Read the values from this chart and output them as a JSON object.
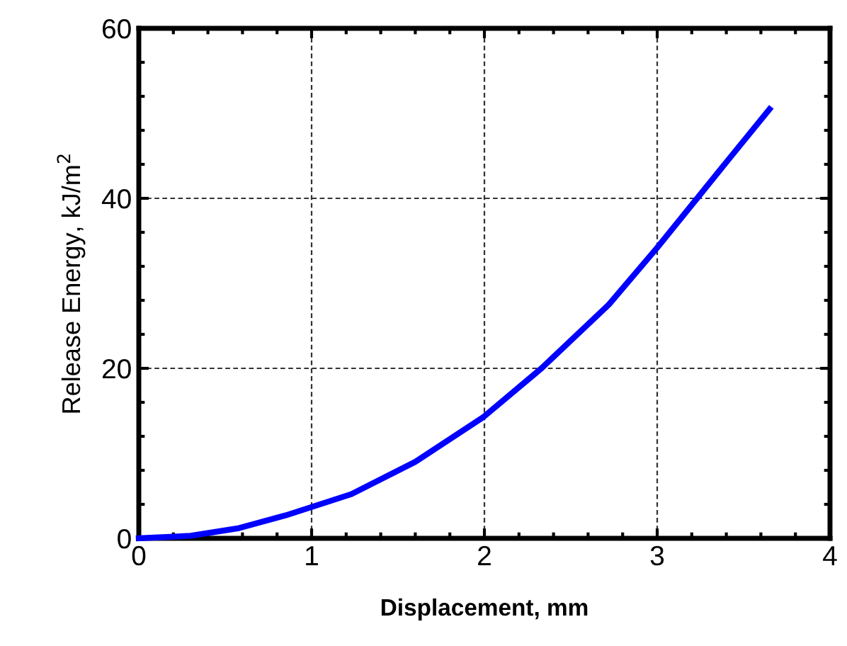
{
  "chart_data": {
    "type": "line",
    "xlabel": "Displacement, mm",
    "ylabel": "Release Energy, kJ/m$^{2}$",
    "series": [
      {
        "color": "#0000ff",
        "x": [
          0,
          0.3,
          0.58,
          0.85,
          1.23,
          1.6,
          1.99,
          2.33,
          2.72,
          3.0,
          3.43,
          3.65
        ],
        "values": [
          0,
          0.3,
          1.2,
          2.7,
          5.2,
          9,
          14.2,
          20,
          27.5,
          34.2,
          45,
          50.5
        ]
      }
    ],
    "xlim": [
      0,
      4
    ],
    "ylim": [
      0,
      60
    ],
    "xticks": [
      0,
      1,
      2,
      3,
      4
    ],
    "yticks": [
      0,
      20,
      40,
      60
    ],
    "grid": true,
    "line_style": "solid",
    "marker": "none"
  }
}
